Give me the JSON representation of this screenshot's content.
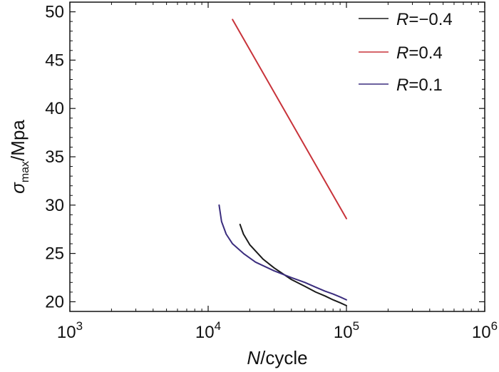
{
  "chart_data": {
    "type": "line",
    "x_scale": "log",
    "xlim": [
      1000,
      1000000
    ],
    "ylim": [
      19,
      51
    ],
    "x_ticks": [
      1000,
      10000,
      100000,
      1000000
    ],
    "x_tick_labels": [
      {
        "base": "10",
        "exp": "3"
      },
      {
        "base": "10",
        "exp": "4"
      },
      {
        "base": "10",
        "exp": "5"
      },
      {
        "base": "10",
        "exp": "6"
      }
    ],
    "y_ticks": [
      20,
      25,
      30,
      35,
      40,
      45,
      50
    ],
    "y_tick_labels": [
      "20",
      "25",
      "30",
      "35",
      "40",
      "45",
      "50"
    ],
    "xlabel": {
      "italic": "N",
      "rest": "/cycle"
    },
    "ylabel": {
      "symbol": "σ",
      "sub": "max",
      "rest": "/Mpa"
    },
    "legend_position": "top-right",
    "series": [
      {
        "name": "R=-0.4",
        "legend": {
          "italic": "R",
          "rest": "=−0.4"
        },
        "color": "#1a1a1a",
        "points": [
          [
            17000,
            28.0
          ],
          [
            18000,
            27.0
          ],
          [
            20000,
            25.9
          ],
          [
            25000,
            24.4
          ],
          [
            30000,
            23.5
          ],
          [
            40000,
            22.3
          ],
          [
            50000,
            21.6
          ],
          [
            60000,
            21.0
          ],
          [
            70000,
            20.6
          ],
          [
            80000,
            20.2
          ],
          [
            90000,
            19.9
          ],
          [
            100000,
            19.6
          ]
        ]
      },
      {
        "name": "R=0.4",
        "legend": {
          "italic": "R",
          "rest": "=0.4"
        },
        "color": "#c8333a",
        "points": [
          [
            15000,
            49.2
          ],
          [
            100000,
            28.6
          ]
        ]
      },
      {
        "name": "R=0.1",
        "legend": {
          "italic": "R",
          "rest": "=0.1"
        },
        "color": "#3b2d7e",
        "points": [
          [
            12000,
            30.0
          ],
          [
            12500,
            28.3
          ],
          [
            13500,
            27.0
          ],
          [
            15000,
            26.0
          ],
          [
            18000,
            25.0
          ],
          [
            22000,
            24.1
          ],
          [
            30000,
            23.2
          ],
          [
            40000,
            22.5
          ],
          [
            50000,
            22.0
          ],
          [
            60000,
            21.5
          ],
          [
            70000,
            21.1
          ],
          [
            80000,
            20.8
          ],
          [
            90000,
            20.5
          ],
          [
            100000,
            20.2
          ]
        ]
      }
    ]
  }
}
